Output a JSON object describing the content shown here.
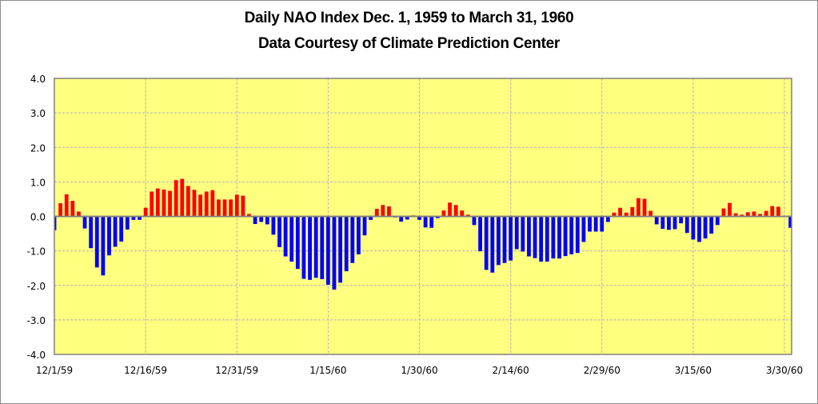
{
  "chart_data": {
    "type": "bar",
    "title": "Daily NAO Index Dec. 1, 1959 to March 31, 1960",
    "subtitle": "Data Courtesy of Climate Prediction Center",
    "xlabel": "",
    "ylabel": "",
    "ylim": [
      -4.0,
      4.0
    ],
    "y_ticks": [
      "4.0",
      "3.0",
      "2.0",
      "1.0",
      "0.0",
      "-1.0",
      "-2.0",
      "-3.0",
      "-4.0"
    ],
    "y_tick_values": [
      4,
      3,
      2,
      1,
      0,
      -1,
      -2,
      -3,
      -4
    ],
    "x_start": "12/1/59",
    "x_end": "3/31/60",
    "x_ticks": [
      {
        "label": "12/1/59",
        "day_index": 0
      },
      {
        "label": "12/16/59",
        "day_index": 15
      },
      {
        "label": "12/31/59",
        "day_index": 30
      },
      {
        "label": "1/15/60",
        "day_index": 45
      },
      {
        "label": "1/30/60",
        "day_index": 60
      },
      {
        "label": "2/14/60",
        "day_index": 75
      },
      {
        "label": "2/29/60",
        "day_index": 90
      },
      {
        "label": "3/15/60",
        "day_index": 105
      },
      {
        "label": "3/30/60",
        "day_index": 120
      }
    ],
    "grid": true,
    "legend": "none",
    "colors": {
      "positive": "#ff0000",
      "negative": "#0000ff",
      "plot_background": "#ffff80",
      "grid": "#b4b4b4",
      "axis": "#808080"
    },
    "values": [
      -0.4,
      0.38,
      0.64,
      0.45,
      0.14,
      -0.35,
      -0.92,
      -1.48,
      -1.71,
      -1.13,
      -0.88,
      -0.73,
      -0.38,
      -0.1,
      -0.1,
      0.25,
      0.72,
      0.81,
      0.78,
      0.74,
      1.05,
      1.09,
      0.88,
      0.77,
      0.63,
      0.72,
      0.76,
      0.49,
      0.49,
      0.49,
      0.63,
      0.6,
      0.07,
      -0.22,
      -0.16,
      -0.23,
      -0.53,
      -0.89,
      -1.16,
      -1.31,
      -1.52,
      -1.81,
      -1.84,
      -1.78,
      -1.82,
      -1.98,
      -2.12,
      -1.92,
      -1.59,
      -1.35,
      -1.1,
      -0.55,
      -0.1,
      0.22,
      0.33,
      0.29,
      -0.03,
      -0.15,
      -0.09,
      0.03,
      -0.1,
      -0.32,
      -0.33,
      -0.05,
      0.17,
      0.4,
      0.33,
      0.17,
      0.05,
      -0.25,
      -1.01,
      -1.55,
      -1.63,
      -1.41,
      -1.35,
      -1.28,
      -0.95,
      -1.02,
      -1.16,
      -1.21,
      -1.31,
      -1.31,
      -1.22,
      -1.22,
      -1.15,
      -1.1,
      -1.06,
      -0.74,
      -0.44,
      -0.44,
      -0.44,
      -0.16,
      0.11,
      0.25,
      0.11,
      0.27,
      0.53,
      0.51,
      0.16,
      -0.23,
      -0.36,
      -0.39,
      -0.37,
      -0.2,
      -0.48,
      -0.67,
      -0.74,
      -0.64,
      -0.5,
      -0.25,
      0.23,
      0.39,
      0.09,
      0.05,
      0.12,
      0.14,
      0.07,
      0.16,
      0.3,
      0.28,
      0.0,
      -0.33
    ]
  }
}
